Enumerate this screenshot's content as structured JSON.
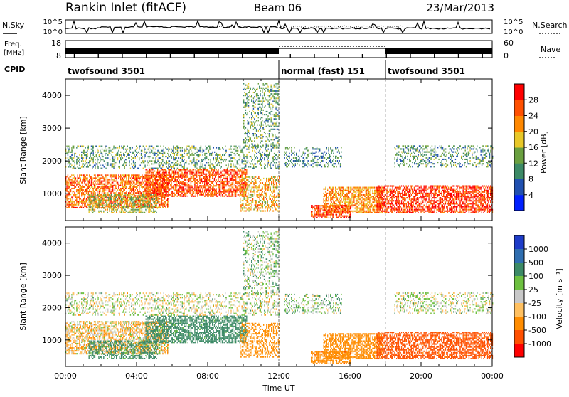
{
  "chart_data": {
    "type": "heatmap",
    "header": {
      "station": "Rankin Inlet (fitACF)",
      "beam": "Beam 06",
      "date": "23/Mar/2013"
    },
    "noise_panel": {
      "left_label": "N.Sky",
      "right_label": "N.Search",
      "left_ticks": [
        "10^5",
        "10^0"
      ],
      "right_ticks": [
        "10^5",
        "10^0"
      ]
    },
    "freq_panel": {
      "left_label_1": "Freq.",
      "left_label_2": "[MHz]",
      "right_label": "Nave",
      "left_ticks": [
        "18",
        "8"
      ],
      "right_ticks": [
        "60",
        "0"
      ]
    },
    "cpid": {
      "label": "CPID",
      "segments": [
        {
          "name": "twofsound 3501",
          "start_hour": 0,
          "end_hour": 12
        },
        {
          "name": "normal (fast) 151",
          "start_hour": 12,
          "end_hour": 18
        },
        {
          "name": "twofsound 3501",
          "start_hour": 18,
          "end_hour": 24
        }
      ]
    },
    "x_axis": {
      "label": "Time UT",
      "range_hours": [
        0,
        24
      ],
      "ticks": [
        "00:00",
        "04:00",
        "08:00",
        "12:00",
        "16:00",
        "20:00",
        "00:00"
      ]
    },
    "y_axis": {
      "label": "Slant Range [km]",
      "range_km": [
        180,
        4500
      ],
      "ticks": [
        "1000",
        "2000",
        "3000",
        "4000"
      ]
    },
    "power_colorbar": {
      "label": "Power [dB]",
      "tick_labels": [
        "4",
        "8",
        "12",
        "16",
        "20",
        "24",
        "28"
      ],
      "colors": [
        "#0020ff",
        "#2050b0",
        "#3c8a66",
        "#6aa040",
        "#e8c828",
        "#ff8800",
        "#ff5000",
        "#ff0000"
      ]
    },
    "velocity_colorbar": {
      "label": "Velocity [m s⁻¹]",
      "tick_labels": [
        "1000",
        "500",
        "100",
        "25",
        "-25",
        "-100",
        "-500",
        "-1000"
      ],
      "colors": [
        "#1e3cc8",
        "#2f6eb0",
        "#3c8a66",
        "#6dc040",
        "#c8c8c8",
        "#ffc060",
        "#ff8c00",
        "#ff5000",
        "#ff0000"
      ]
    },
    "echo_regions": [
      {
        "hour_start": 0.0,
        "hour_end": 5.8,
        "range_start": 550,
        "range_end": 1550,
        "power": 24,
        "velocity": -60
      },
      {
        "hour_start": 1.3,
        "hour_end": 5.2,
        "range_start": 400,
        "range_end": 950,
        "power": 16,
        "velocity": 180
      },
      {
        "hour_start": 4.5,
        "hour_end": 10.2,
        "range_start": 900,
        "range_end": 1750,
        "power": 26,
        "velocity": 200
      },
      {
        "hour_start": 9.8,
        "hour_end": 12.0,
        "range_start": 450,
        "range_end": 1500,
        "power": 20,
        "velocity": -180
      },
      {
        "hour_start": 0.0,
        "hour_end": 12.0,
        "range_start": 1750,
        "range_end": 2450,
        "power": 12,
        "velocity": 0
      },
      {
        "hour_start": 10.0,
        "hour_end": 12.0,
        "range_start": 2400,
        "range_end": 4350,
        "power": 12,
        "velocity": 50
      },
      {
        "hour_start": 12.3,
        "hour_end": 15.5,
        "range_start": 1800,
        "range_end": 2400,
        "power": 10,
        "velocity": 60
      },
      {
        "hour_start": 14.5,
        "hour_end": 17.8,
        "range_start": 400,
        "range_end": 1200,
        "power": 22,
        "velocity": -300
      },
      {
        "hour_start": 13.8,
        "hour_end": 16.0,
        "range_start": 250,
        "range_end": 650,
        "power": 27,
        "velocity": -400
      },
      {
        "hour_start": 17.5,
        "hour_end": 24.0,
        "range_start": 400,
        "range_end": 1250,
        "power": 28,
        "velocity": -600
      },
      {
        "hour_start": 18.5,
        "hour_end": 24.0,
        "range_start": 1800,
        "range_end": 2450,
        "power": 11,
        "velocity": 10
      }
    ]
  }
}
